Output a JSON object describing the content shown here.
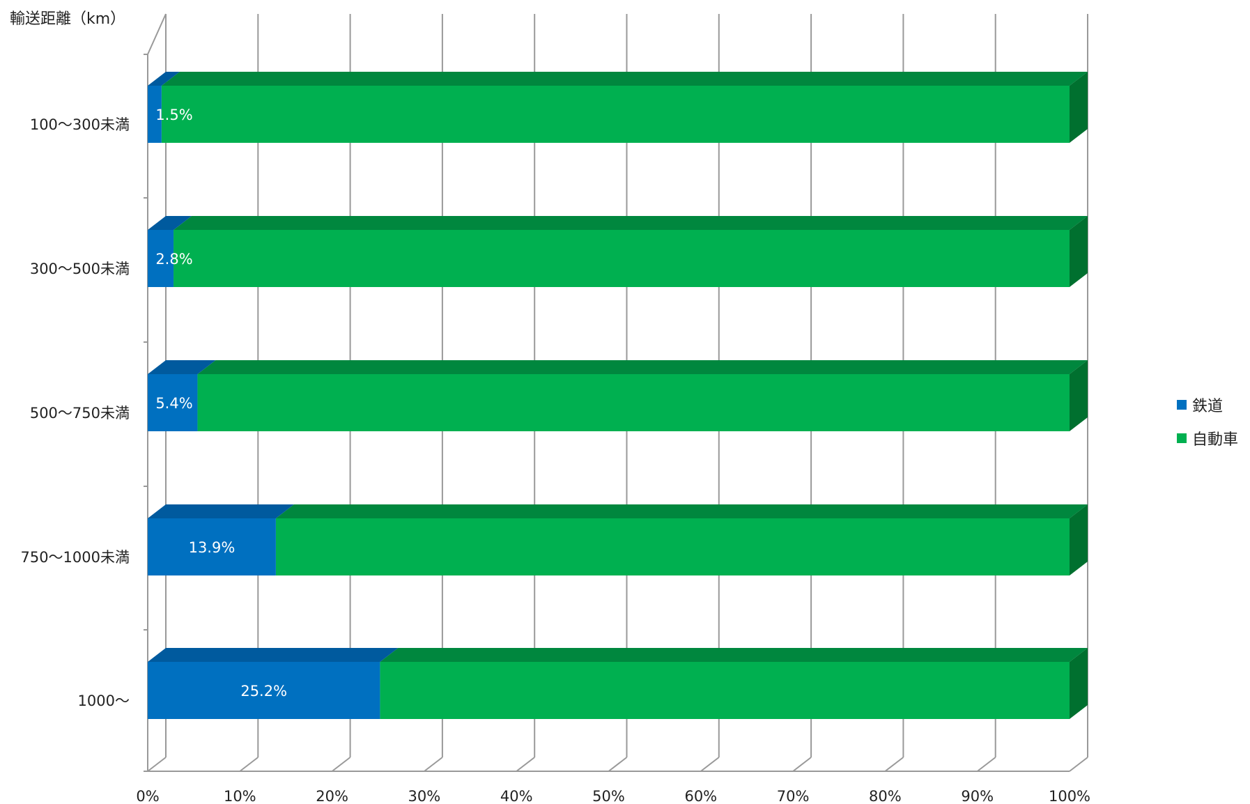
{
  "chart_data": {
    "type": "bar",
    "orientation": "horizontal",
    "stacked": "percent",
    "three_d": true,
    "title": "",
    "ylabel": "輸送距離（km）",
    "xlabel": "",
    "categories": [
      "100～300未満",
      "300～500未満",
      "500～750未満",
      "750～1000未満",
      "1000～"
    ],
    "series": [
      {
        "name": "鉄道",
        "values": [
          1.5,
          2.8,
          5.4,
          13.9,
          25.2
        ],
        "color": "#0070C0",
        "labels": [
          "1.5%",
          "2.8%",
          "5.4%",
          "13.9%",
          "25.2%"
        ]
      },
      {
        "name": "自動車",
        "values": [
          98.5,
          97.2,
          94.6,
          86.1,
          74.8
        ],
        "color": "#00B050"
      }
    ],
    "xlim": [
      0,
      100
    ],
    "x_ticks": [
      "0%",
      "10%",
      "20%",
      "30%",
      "40%",
      "50%",
      "60%",
      "70%",
      "80%",
      "90%",
      "100%"
    ],
    "grid": true,
    "legend": "right",
    "colors": {
      "rail_top": "#005A9E",
      "car_top": "#00873E",
      "car_side": "#00702F",
      "grid": "#999999"
    }
  }
}
